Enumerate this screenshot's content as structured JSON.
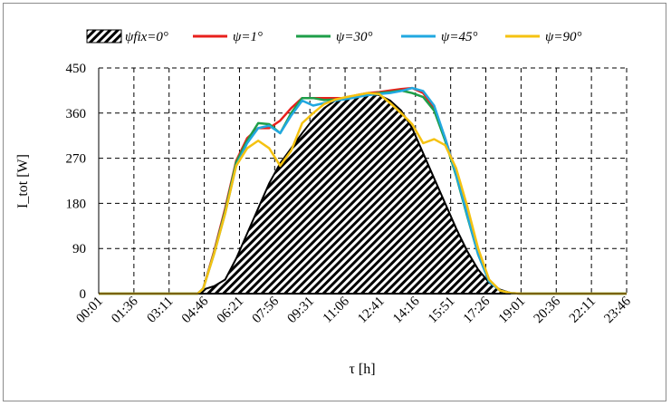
{
  "chart_data": {
    "type": "line",
    "title": "",
    "xlabel": "τ [h]",
    "ylabel": "I_tot [W]",
    "ylim": [
      0,
      450
    ],
    "yticks": [
      0,
      90,
      180,
      270,
      360,
      450
    ],
    "xtick_labels": [
      "00:01",
      "01:36",
      "03:11",
      "04:46",
      "06:21",
      "07:56",
      "09:31",
      "11:06",
      "12:41",
      "14:16",
      "15:51",
      "17:26",
      "19:01",
      "20:36",
      "22:11",
      "23:46"
    ],
    "grid": true,
    "legend_position": "top",
    "series": [
      {
        "name": "ψfix=0°",
        "style": "hatched-area",
        "color": "#000000",
        "x": [
          0,
          4.5,
          4.75,
          5.25,
          5.75,
          6.25,
          6.75,
          7.25,
          7.75,
          8.25,
          8.75,
          9.25,
          9.75,
          10.25,
          10.75,
          11.25,
          11.75,
          12.25,
          12.75,
          13.25,
          13.75,
          14.25,
          14.75,
          15.25,
          15.75,
          16.25,
          16.75,
          17.25,
          17.75,
          18.25,
          18.75,
          19.25,
          24
        ],
        "values": [
          0,
          0,
          8,
          15,
          28,
          70,
          120,
          170,
          220,
          260,
          290,
          320,
          348,
          370,
          385,
          392,
          396,
          398,
          396,
          385,
          365,
          330,
          280,
          230,
          180,
          130,
          85,
          48,
          22,
          8,
          1,
          0,
          0
        ]
      },
      {
        "name": "ψ=1°",
        "color": "#e8201c",
        "x": [
          0,
          4.5,
          4.75,
          5.25,
          5.75,
          6.25,
          6.75,
          7.25,
          7.75,
          8.25,
          8.75,
          9.25,
          9.75,
          10.25,
          10.75,
          11.25,
          11.75,
          12.25,
          12.75,
          13.25,
          13.75,
          14.25,
          14.75,
          15.25,
          15.75,
          16.25,
          16.75,
          17.25,
          17.75,
          18.25,
          18.75,
          19.25,
          24
        ],
        "values": [
          0,
          0,
          10,
          85,
          170,
          265,
          310,
          330,
          330,
          345,
          370,
          390,
          390,
          390,
          390,
          390,
          396,
          400,
          402,
          405,
          408,
          410,
          400,
          370,
          310,
          240,
          160,
          80,
          25,
          6,
          1,
          0,
          0
        ]
      },
      {
        "name": "ψ=30°",
        "color": "#1e9e48",
        "x": [
          0,
          4.5,
          4.75,
          5.25,
          5.75,
          6.25,
          6.75,
          7.25,
          7.75,
          8.25,
          8.75,
          9.25,
          9.75,
          10.25,
          10.75,
          11.25,
          11.75,
          12.25,
          12.75,
          13.25,
          13.75,
          14.25,
          14.75,
          15.25,
          15.75,
          16.25,
          16.75,
          17.25,
          17.75,
          18.25,
          18.75,
          19.25,
          24
        ],
        "values": [
          0,
          0,
          10,
          82,
          165,
          262,
          305,
          340,
          338,
          320,
          360,
          390,
          390,
          386,
          387,
          388,
          392,
          398,
          400,
          402,
          405,
          400,
          392,
          365,
          305,
          235,
          155,
          78,
          24,
          6,
          1,
          0,
          0
        ]
      },
      {
        "name": "ψ=45°",
        "color": "#21a8e0",
        "x": [
          0,
          4.5,
          4.75,
          5.25,
          5.75,
          6.25,
          6.75,
          7.25,
          7.75,
          8.25,
          8.75,
          9.25,
          9.75,
          10.25,
          10.75,
          11.25,
          11.75,
          12.25,
          12.75,
          13.25,
          13.75,
          14.25,
          14.75,
          15.25,
          15.75,
          16.25,
          16.75,
          17.25,
          17.75,
          18.25,
          18.75,
          19.25,
          24
        ],
        "values": [
          0,
          0,
          10,
          80,
          160,
          255,
          300,
          330,
          335,
          320,
          355,
          385,
          375,
          380,
          385,
          388,
          392,
          396,
          398,
          400,
          404,
          410,
          404,
          375,
          310,
          238,
          158,
          78,
          24,
          6,
          1,
          0,
          0
        ]
      },
      {
        "name": "ψ=90°",
        "color": "#f5c211",
        "x": [
          0,
          4.5,
          4.75,
          5.25,
          5.75,
          6.25,
          6.75,
          7.25,
          7.75,
          8.25,
          8.75,
          9.25,
          9.75,
          10.25,
          10.75,
          11.25,
          11.75,
          12.25,
          12.75,
          13.25,
          13.75,
          14.25,
          14.75,
          15.25,
          15.75,
          16.25,
          16.75,
          17.25,
          17.75,
          18.25,
          18.75,
          19.25,
          24
        ],
        "values": [
          0,
          0,
          10,
          80,
          160,
          255,
          290,
          305,
          290,
          255,
          285,
          340,
          360,
          378,
          387,
          392,
          396,
          400,
          398,
          380,
          360,
          338,
          300,
          308,
          296,
          250,
          175,
          90,
          28,
          6,
          1,
          0,
          0
        ]
      }
    ]
  }
}
